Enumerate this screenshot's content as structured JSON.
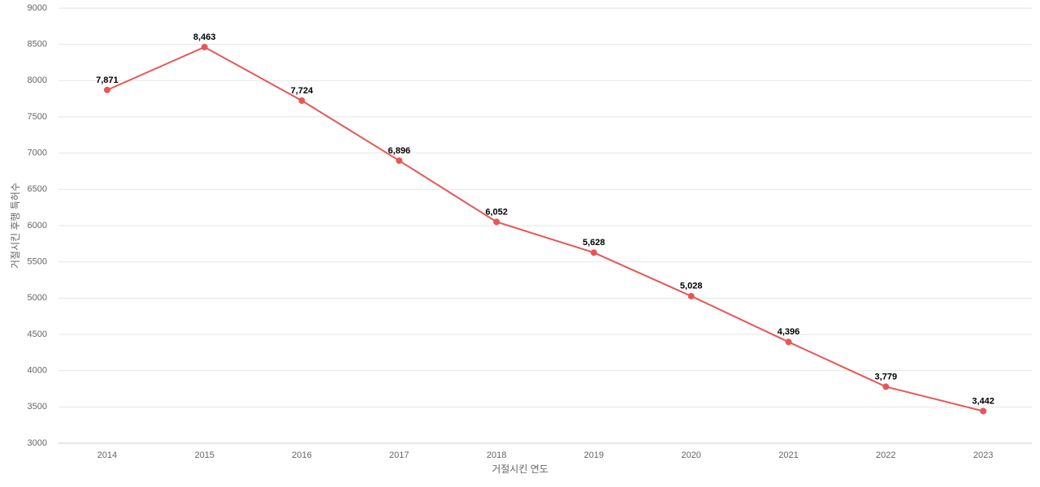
{
  "chart_data": {
    "type": "line",
    "x_label": "거절시킨 연도",
    "y_label": "거절시킨 후행 특허수",
    "categories": [
      "2014",
      "2015",
      "2016",
      "2017",
      "2018",
      "2019",
      "2020",
      "2021",
      "2022",
      "2023"
    ],
    "values": [
      7871,
      8463,
      7724,
      6896,
      6052,
      5628,
      5028,
      4396,
      3779,
      3442
    ],
    "value_labels": [
      "7,871",
      "8,463",
      "7,724",
      "6,896",
      "6,052",
      "5,628",
      "5,028",
      "4,396",
      "3,779",
      "3,442"
    ],
    "color": "#e85656",
    "ylim": [
      3000,
      9000
    ],
    "yticks": [
      3000,
      3500,
      4000,
      4500,
      5000,
      5500,
      6000,
      6500,
      7000,
      7500,
      8000,
      8500,
      9000
    ],
    "grid": true
  }
}
